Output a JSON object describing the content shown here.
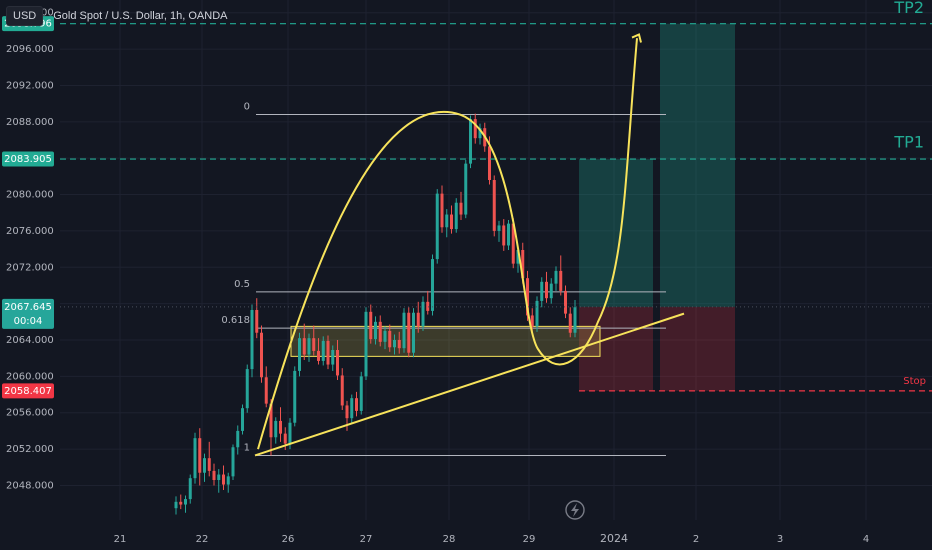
{
  "header": {
    "currency_label": "USD",
    "title": "Gold Spot / U.S. Dollar, 1h, OANDA"
  },
  "price_labels": {
    "tp2": "2098.796",
    "tp1": "2083.905",
    "current": "2067.645",
    "countdown": "00:04",
    "stop": "2058.407"
  },
  "annotations": {
    "tp2": "TP2",
    "tp1": "TP1",
    "stop": "Stop"
  },
  "fib_levels": [
    {
      "label": "0",
      "price": 2088.8
    },
    {
      "label": "0.5",
      "price": 2069.3
    },
    {
      "label": "0.618",
      "price": 2065.3
    },
    {
      "label": "1",
      "price": 2051.3
    }
  ],
  "colors": {
    "up": "#26a69a",
    "down": "#ef5350",
    "accent": "#f7e35b",
    "target": "#22ab94",
    "stop": "#f23645"
  },
  "chart_data": {
    "type": "candlestick",
    "y_ticks": [
      2048,
      2052,
      2056,
      2060,
      2064,
      2068,
      2072,
      2076,
      2080,
      2084,
      2088,
      2092,
      2096,
      2100
    ],
    "y_tick_labels": [
      "2048.000",
      "2052.000",
      "2056.000",
      "2060.000",
      "2064.000",
      "2068.000",
      "2072.000",
      "2076.000",
      "2080.000",
      "2084.000",
      "2088.000",
      "2092.000",
      "2096.000",
      "2100.000"
    ],
    "x_ticks": [
      "21",
      "22",
      "26",
      "27",
      "28",
      "29",
      "2024",
      "2",
      "3",
      "4"
    ],
    "ylim": [
      2044.2,
      2101.4
    ],
    "tp2": 2098.796,
    "tp1": 2083.905,
    "entry": 2067.645,
    "stop": 2058.407,
    "ohlc": [
      [
        2045.5,
        2046.8,
        2044.8,
        2046.2
      ],
      [
        2046.2,
        2047.0,
        2045.4,
        2045.9
      ],
      [
        2045.9,
        2046.9,
        2045.0,
        2046.5
      ],
      [
        2046.5,
        2049.2,
        2046.0,
        2048.8
      ],
      [
        2048.8,
        2053.8,
        2048.2,
        2053.2
      ],
      [
        2053.2,
        2054.3,
        2048.0,
        2049.4
      ],
      [
        2049.4,
        2051.5,
        2048.4,
        2051.0
      ],
      [
        2051.0,
        2052.8,
        2049.0,
        2049.6
      ],
      [
        2049.6,
        2050.4,
        2048.0,
        2048.6
      ],
      [
        2048.6,
        2049.8,
        2047.2,
        2049.2
      ],
      [
        2049.2,
        2050.2,
        2047.5,
        2048.1
      ],
      [
        2048.1,
        2049.4,
        2047.2,
        2049.0
      ],
      [
        2049.0,
        2052.5,
        2048.6,
        2052.2
      ],
      [
        2052.2,
        2054.6,
        2051.4,
        2054.0
      ],
      [
        2054.0,
        2056.9,
        2053.6,
        2056.5
      ],
      [
        2056.5,
        2061.3,
        2056.0,
        2060.8
      ],
      [
        2060.8,
        2067.9,
        2059.9,
        2067.3
      ],
      [
        2067.3,
        2068.6,
        2064.2,
        2064.8
      ],
      [
        2064.8,
        2065.6,
        2059.3,
        2059.9
      ],
      [
        2059.9,
        2061.1,
        2056.6,
        2057.0
      ],
      [
        2057.0,
        2057.5,
        2051.3,
        2053.3
      ],
      [
        2053.3,
        2055.5,
        2052.6,
        2055.1
      ],
      [
        2055.1,
        2056.6,
        2052.8,
        2053.7
      ],
      [
        2053.7,
        2054.4,
        2051.9,
        2052.6
      ],
      [
        2052.6,
        2055.4,
        2052.0,
        2054.9
      ],
      [
        2054.9,
        2061.1,
        2054.5,
        2060.6
      ],
      [
        2060.6,
        2064.8,
        2060.0,
        2064.2
      ],
      [
        2064.2,
        2065.8,
        2061.8,
        2062.4
      ],
      [
        2062.4,
        2064.7,
        2061.6,
        2064.2
      ],
      [
        2064.2,
        2065.6,
        2062.3,
        2062.8
      ],
      [
        2062.8,
        2064.2,
        2061.3,
        2061.7
      ],
      [
        2061.7,
        2064.4,
        2061.2,
        2063.9
      ],
      [
        2063.9,
        2064.5,
        2060.8,
        2061.3
      ],
      [
        2061.3,
        2063.4,
        2060.6,
        2062.9
      ],
      [
        2062.9,
        2064.0,
        2059.6,
        2060.1
      ],
      [
        2060.1,
        2060.9,
        2056.3,
        2056.8
      ],
      [
        2056.8,
        2057.3,
        2054.0,
        2055.4
      ],
      [
        2055.4,
        2058.0,
        2054.8,
        2057.6
      ],
      [
        2057.6,
        2058.3,
        2055.6,
        2056.2
      ],
      [
        2056.2,
        2060.5,
        2055.8,
        2060.0
      ],
      [
        2060.0,
        2067.6,
        2059.6,
        2067.1
      ],
      [
        2067.1,
        2067.9,
        2063.6,
        2064.1
      ],
      [
        2064.1,
        2066.6,
        2063.5,
        2066.0
      ],
      [
        2066.0,
        2066.7,
        2063.3,
        2063.8
      ],
      [
        2063.8,
        2065.5,
        2063.0,
        2065.0
      ],
      [
        2065.0,
        2065.7,
        2062.7,
        2063.2
      ],
      [
        2063.2,
        2064.6,
        2062.4,
        2064.0
      ],
      [
        2064.0,
        2064.9,
        2062.5,
        2063.1
      ],
      [
        2063.1,
        2067.5,
        2062.6,
        2067.0
      ],
      [
        2067.0,
        2067.6,
        2062.1,
        2062.6
      ],
      [
        2062.6,
        2067.5,
        2062.1,
        2067.0
      ],
      [
        2067.0,
        2068.2,
        2064.8,
        2065.5
      ],
      [
        2065.5,
        2068.8,
        2065.0,
        2068.2
      ],
      [
        2068.2,
        2069.4,
        2066.8,
        2067.2
      ],
      [
        2067.2,
        2073.4,
        2066.7,
        2072.9
      ],
      [
        2072.9,
        2080.6,
        2072.4,
        2080.1
      ],
      [
        2080.1,
        2081.0,
        2075.8,
        2076.4
      ],
      [
        2076.4,
        2078.4,
        2075.3,
        2077.8
      ],
      [
        2077.8,
        2078.8,
        2075.7,
        2076.2
      ],
      [
        2076.2,
        2079.6,
        2075.8,
        2079.1
      ],
      [
        2079.1,
        2080.3,
        2077.2,
        2077.8
      ],
      [
        2077.8,
        2083.8,
        2077.4,
        2083.4
      ],
      [
        2083.4,
        2088.7,
        2082.9,
        2088.3
      ],
      [
        2088.3,
        2088.9,
        2085.6,
        2086.2
      ],
      [
        2086.2,
        2087.8,
        2085.5,
        2087.3
      ],
      [
        2087.3,
        2087.9,
        2084.7,
        2085.3
      ],
      [
        2085.3,
        2086.4,
        2081.1,
        2081.6
      ],
      [
        2081.6,
        2082.1,
        2075.4,
        2076.0
      ],
      [
        2076.0,
        2077.1,
        2074.8,
        2076.6
      ],
      [
        2076.6,
        2077.3,
        2073.8,
        2074.4
      ],
      [
        2074.4,
        2077.2,
        2073.9,
        2076.8
      ],
      [
        2076.8,
        2077.4,
        2071.9,
        2072.4
      ],
      [
        2072.4,
        2074.4,
        2071.4,
        2073.9
      ],
      [
        2073.9,
        2074.7,
        2070.2,
        2070.8
      ],
      [
        2070.8,
        2071.6,
        2066.1,
        2066.7
      ],
      [
        2066.7,
        2067.5,
        2064.9,
        2065.5
      ],
      [
        2065.5,
        2068.8,
        2064.9,
        2068.3
      ],
      [
        2068.3,
        2070.9,
        2067.6,
        2070.4
      ],
      [
        2070.4,
        2071.5,
        2068.1,
        2068.6
      ],
      [
        2068.6,
        2070.8,
        2068.0,
        2070.2
      ],
      [
        2070.2,
        2072.1,
        2069.4,
        2071.6
      ],
      [
        2071.6,
        2073.3,
        2068.9,
        2069.4
      ],
      [
        2069.4,
        2070.0,
        2066.4,
        2066.9
      ],
      [
        2066.9,
        2067.6,
        2064.3,
        2064.8
      ],
      [
        2064.8,
        2068.4,
        2064.3,
        2067.6
      ]
    ]
  }
}
